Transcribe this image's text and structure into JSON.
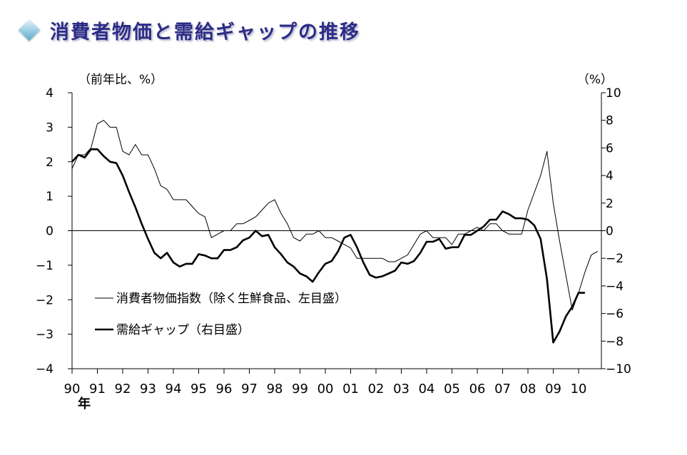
{
  "page": {
    "title": "消費者物価と需給ギャップの推移"
  },
  "chart_data": {
    "type": "line",
    "left_unit": "（前年比、%）",
    "right_unit": "（%）",
    "year_suffix": "年",
    "x_years": [
      1990,
      1991,
      1992,
      1993,
      1994,
      1995,
      1996,
      1997,
      1998,
      1999,
      2000,
      2001,
      2002,
      2003,
      2004,
      2005,
      2006,
      2007,
      2008,
      2009,
      2010
    ],
    "x_tick_labels": [
      "90",
      "91",
      "92",
      "93",
      "94",
      "95",
      "96",
      "97",
      "98",
      "99",
      "00",
      "01",
      "02",
      "03",
      "04",
      "05",
      "06",
      "07",
      "08",
      "09",
      "10"
    ],
    "xlim": [
      1990.0,
      2010.9
    ],
    "y_left": {
      "lim": [
        -4,
        4
      ],
      "ticks": [
        4,
        3,
        2,
        1,
        0,
        -1,
        -2,
        -3,
        -4
      ],
      "tick_labels": [
        "4",
        "3",
        "2",
        "1",
        "0",
        "−1",
        "−2",
        "−3",
        "−4"
      ]
    },
    "y_right": {
      "lim": [
        -10,
        10
      ],
      "ticks": [
        10,
        8,
        6,
        4,
        2,
        0,
        -2,
        -4,
        -6,
        -8,
        -10
      ],
      "tick_labels": [
        "10",
        "8",
        "6",
        "4",
        "2",
        "0",
        "−2",
        "−4",
        "−6",
        "−8",
        "−10"
      ]
    },
    "series": [
      {
        "name": "消費者物価指数（除く生鮮食品、左目盛）",
        "axis": "left",
        "color": "#000000",
        "width": "thin",
        "x": [
          1990.0,
          1990.25,
          1990.5,
          1990.75,
          1991.0,
          1991.25,
          1991.5,
          1991.75,
          1992.0,
          1992.25,
          1992.5,
          1992.75,
          1993.0,
          1993.25,
          1993.5,
          1993.75,
          1994.0,
          1994.25,
          1994.5,
          1994.75,
          1995.0,
          1995.25,
          1995.5,
          1995.75,
          1996.0,
          1996.25,
          1996.5,
          1996.75,
          1997.0,
          1997.25,
          1997.5,
          1997.75,
          1998.0,
          1998.25,
          1998.5,
          1998.75,
          1999.0,
          1999.25,
          1999.5,
          1999.75,
          2000.0,
          2000.25,
          2000.5,
          2000.75,
          2001.0,
          2001.25,
          2001.5,
          2001.75,
          2002.0,
          2002.25,
          2002.5,
          2002.75,
          2003.0,
          2003.25,
          2003.5,
          2003.75,
          2004.0,
          2004.25,
          2004.5,
          2004.75,
          2005.0,
          2005.25,
          2005.5,
          2005.75,
          2006.0,
          2006.25,
          2006.5,
          2006.75,
          2007.0,
          2007.25,
          2007.5,
          2007.75,
          2008.0,
          2008.25,
          2008.5,
          2008.75,
          2009.0,
          2009.25,
          2009.5,
          2009.75,
          2010.0,
          2010.25,
          2010.5,
          2010.75
        ],
        "values": [
          1.8,
          2.2,
          2.2,
          2.4,
          3.1,
          3.2,
          3.0,
          3.0,
          2.3,
          2.2,
          2.5,
          2.2,
          2.2,
          1.8,
          1.3,
          1.2,
          0.9,
          0.9,
          0.9,
          0.7,
          0.5,
          0.4,
          -0.2,
          -0.1,
          0.0,
          0.0,
          0.2,
          0.2,
          0.3,
          0.4,
          0.6,
          0.8,
          0.9,
          0.5,
          0.2,
          -0.2,
          -0.3,
          -0.1,
          -0.1,
          0.0,
          -0.2,
          -0.2,
          -0.3,
          -0.4,
          -0.5,
          -0.8,
          -0.8,
          -0.8,
          -0.8,
          -0.8,
          -0.9,
          -0.9,
          -0.8,
          -0.7,
          -0.4,
          -0.1,
          0.0,
          -0.2,
          -0.2,
          -0.2,
          -0.4,
          -0.1,
          -0.1,
          0.0,
          0.1,
          0.0,
          0.2,
          0.2,
          0.0,
          -0.1,
          -0.1,
          -0.1,
          0.6,
          1.1,
          1.6,
          2.3,
          0.8,
          -0.3,
          -1.3,
          -2.3,
          -1.8,
          -1.2,
          -0.7,
          -0.6
        ]
      },
      {
        "name": "需給ギャップ（右目盛）",
        "axis": "right",
        "color": "#000000",
        "width": "thick",
        "x": [
          1990.0,
          1990.25,
          1990.5,
          1990.75,
          1991.0,
          1991.25,
          1991.5,
          1991.75,
          1992.0,
          1992.25,
          1992.5,
          1992.75,
          1993.0,
          1993.25,
          1993.5,
          1993.75,
          1994.0,
          1994.25,
          1994.5,
          1994.75,
          1995.0,
          1995.25,
          1995.5,
          1995.75,
          1996.0,
          1996.25,
          1996.5,
          1996.75,
          1997.0,
          1997.25,
          1997.5,
          1997.75,
          1998.0,
          1998.25,
          1998.5,
          1998.75,
          1999.0,
          1999.25,
          1999.5,
          1999.75,
          2000.0,
          2000.25,
          2000.5,
          2000.75,
          2001.0,
          2001.25,
          2001.5,
          2001.75,
          2002.0,
          2002.25,
          2002.5,
          2002.75,
          2003.0,
          2003.25,
          2003.5,
          2003.75,
          2004.0,
          2004.25,
          2004.5,
          2004.75,
          2005.0,
          2005.25,
          2005.5,
          2005.75,
          2006.0,
          2006.25,
          2006.5,
          2006.75,
          2007.0,
          2007.25,
          2007.5,
          2007.75,
          2008.0,
          2008.25,
          2008.5,
          2008.75,
          2009.0,
          2009.25,
          2009.5,
          2009.75,
          2010.0,
          2010.25
        ],
        "values": [
          5.0,
          5.5,
          5.3,
          5.9,
          5.9,
          5.4,
          5.0,
          4.9,
          4.0,
          2.8,
          1.7,
          0.5,
          -0.6,
          -1.6,
          -2.0,
          -1.6,
          -2.3,
          -2.6,
          -2.4,
          -2.4,
          -1.7,
          -1.8,
          -2.0,
          -2.0,
          -1.4,
          -1.4,
          -1.2,
          -0.7,
          -0.5,
          0.0,
          -0.4,
          -0.3,
          -1.2,
          -1.7,
          -2.3,
          -2.6,
          -3.1,
          -3.3,
          -3.7,
          -3.0,
          -2.4,
          -2.2,
          -1.5,
          -0.5,
          -0.3,
          -1.2,
          -2.3,
          -3.2,
          -3.4,
          -3.3,
          -3.1,
          -2.9,
          -2.3,
          -2.4,
          -2.2,
          -1.6,
          -0.8,
          -0.8,
          -0.6,
          -1.3,
          -1.2,
          -1.2,
          -0.3,
          -0.3,
          0.0,
          0.3,
          0.8,
          0.8,
          1.4,
          1.2,
          0.9,
          0.9,
          0.8,
          0.4,
          -0.6,
          -3.5,
          -8.1,
          -7.3,
          -6.2,
          -5.5,
          -4.5,
          -4.5
        ]
      }
    ],
    "legend_position": "lower-left",
    "grid": false
  }
}
